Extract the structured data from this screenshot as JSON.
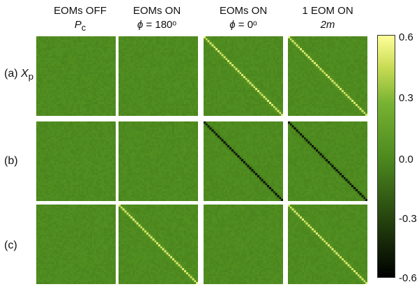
{
  "chart_data": {
    "type": "heatmap",
    "columns": [
      {
        "line1": "EOMs OFF",
        "line2_sym": "P",
        "line2_sub": "c",
        "line2_rest": ""
      },
      {
        "line1": "EOMs ON",
        "line2_sym": "ϕ",
        "line2_sub": "",
        "line2_rest": " = 180ᵒ"
      },
      {
        "line1": "EOMs ON",
        "line2_sym": "ϕ",
        "line2_sub": "",
        "line2_rest": " = 0ᵒ"
      },
      {
        "line1": "1 EOM ON",
        "line2_sym": "2m",
        "line2_sub": "",
        "line2_rest": ""
      }
    ],
    "rows": [
      {
        "label": "(a) ",
        "sym": "X",
        "sub": "p"
      },
      {
        "label": "(b)",
        "sym": "",
        "sub": ""
      },
      {
        "label": "(c)",
        "sym": "",
        "sub": ""
      }
    ],
    "panels": [
      [
        {
          "diag": 0,
          "offset": 0
        },
        {
          "diag": 0,
          "offset": 0
        },
        {
          "diag": 0.5,
          "offset": 0
        },
        {
          "diag": 0.5,
          "offset": 0
        }
      ],
      [
        {
          "diag": 0,
          "offset": 0
        },
        {
          "diag": 0,
          "offset": 0
        },
        {
          "diag": -0.55,
          "offset": 0
        },
        {
          "diag": -0.55,
          "offset": 0
        }
      ],
      [
        {
          "diag": 0,
          "offset": 0
        },
        {
          "diag": 0.5,
          "offset": 0
        },
        {
          "diag": 0,
          "offset": 0
        },
        {
          "diag": 0.5,
          "offset": 0
        }
      ]
    ],
    "matrix_size": 40,
    "colorbar": {
      "range": [
        -0.6,
        0.6
      ],
      "ticks": [
        "0.6",
        "0.3",
        "0.0",
        "-0.3",
        "-0.6"
      ],
      "tick_values": [
        0.6,
        0.3,
        0.0,
        -0.3,
        -0.6
      ],
      "colors": [
        "#000000",
        "#27460f",
        "#4e8b1f",
        "#78b232",
        "#c9dc55",
        "#ffff99"
      ]
    }
  }
}
